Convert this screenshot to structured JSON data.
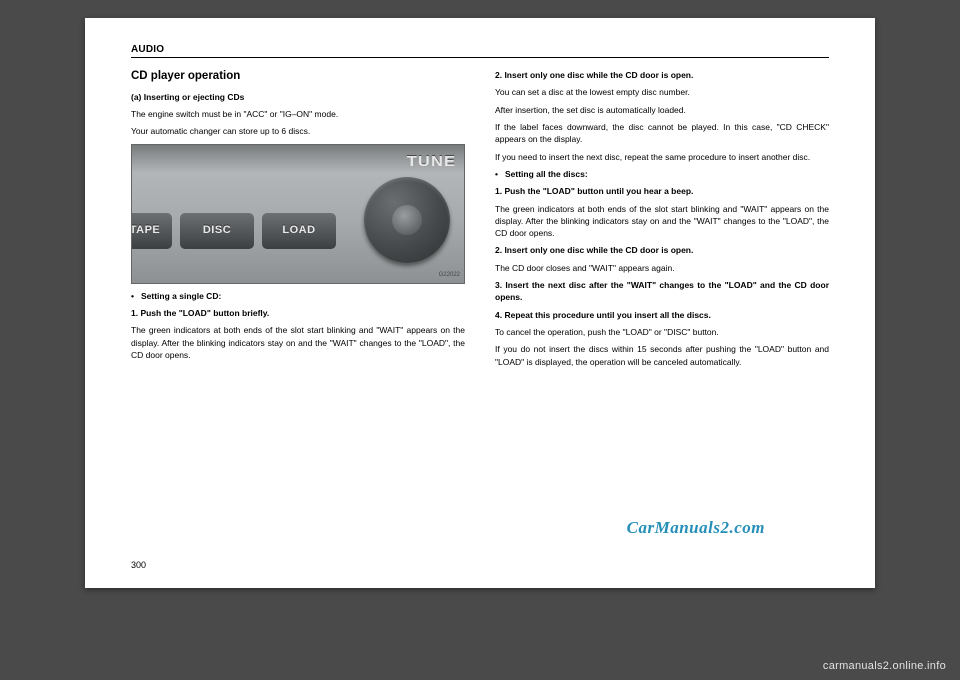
{
  "header": {
    "section": "AUDIO"
  },
  "page_number": "300",
  "watermark": "CarManuals2.com",
  "footer_site": "carmanuals2.online.info",
  "figure": {
    "buttons": [
      "TAPE",
      "DISC",
      "LOAD"
    ],
    "dial_label": "TUNE",
    "code": "G22022"
  },
  "left": {
    "title": "CD player operation",
    "sub_a": "(a) Inserting or ejecting CDs",
    "p1": "The engine switch must be in \"ACC\" or \"IG–ON\" mode.",
    "p2": "Your automatic changer can store up to 6 discs.",
    "bullet1": "Setting a single CD:",
    "step1": "1. Push the \"LOAD\" button briefly.",
    "p3": "The green indicators at both ends of the slot start blinking and \"WAIT\" appears on the display. After the blinking indicators stay on and the \"WAIT\" changes to the \"LOAD\", the CD door opens."
  },
  "right": {
    "step2": "2. Insert only one disc while the CD door is open.",
    "p1": "You can set a disc at the lowest empty disc number.",
    "p2": "After insertion, the set disc is automatically loaded.",
    "p3": "If the label faces downward, the disc cannot be played. In this case, \"CD CHECK\" appears on the display.",
    "p4": "If you need to insert the next disc, repeat the same procedure to insert another disc.",
    "bullet1": "Setting all the discs:",
    "step_b1": "1. Push the \"LOAD\" button until you hear a beep.",
    "p5": "The green indicators at both ends of the slot start blinking and \"WAIT\" appears on the display. After the blinking indicators stay on and the \"WAIT\" changes to the \"LOAD\", the CD door opens.",
    "step_b2": "2. Insert only one disc while the CD door is open.",
    "p6": "The CD door closes and \"WAIT\" appears again.",
    "step_b3": "3. Insert the next disc after the \"WAIT\" changes to the \"LOAD\" and the CD door opens.",
    "step_b4": "4. Repeat this procedure until you insert all the discs.",
    "p7": "To cancel the operation, push the \"LOAD\" or \"DISC\" button.",
    "p8": "If you do not insert the discs within 15 seconds after pushing the \"LOAD\" button and \"LOAD\" is displayed, the operation will be canceled automatically."
  }
}
